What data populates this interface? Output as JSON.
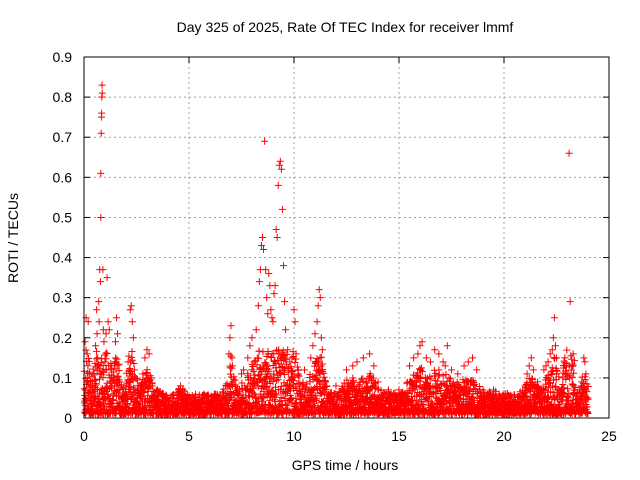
{
  "chart_data": {
    "type": "scatter",
    "title": "Day 325 of 2025, Rate Of TEC Index for receiver lmmf",
    "xlabel": "GPS time / hours",
    "ylabel": "ROTI / TECUs",
    "xlim": [
      0,
      25
    ],
    "ylim": [
      0,
      0.9
    ],
    "xticks": [
      0,
      5,
      10,
      15,
      20,
      25
    ],
    "xtick_labels": [
      "0",
      "5",
      "10",
      "15",
      "20",
      "25"
    ],
    "yticks": [
      0,
      0.1,
      0.2,
      0.3,
      0.4,
      0.5,
      0.6,
      0.7,
      0.8,
      0.9
    ],
    "ytick_labels": [
      "0",
      "0.1",
      "0.2",
      "0.3",
      "0.4",
      "0.5",
      "0.6",
      "0.7",
      "0.8",
      "0.9"
    ],
    "grid": true,
    "marker": "+",
    "color": "#ff0000",
    "series": [
      {
        "name": "ROTI",
        "points": [
          [
            0.05,
            0.19
          ],
          [
            0.1,
            0.25
          ],
          [
            0.15,
            0.16
          ],
          [
            0.2,
            0.24
          ],
          [
            0.25,
            0.11
          ],
          [
            0.3,
            0.09
          ],
          [
            0.4,
            0.08
          ],
          [
            0.5,
            0.07
          ],
          [
            0.55,
            0.18
          ],
          [
            0.6,
            0.27
          ],
          [
            0.62,
            0.21
          ],
          [
            0.65,
            0.15
          ],
          [
            0.7,
            0.29
          ],
          [
            0.72,
            0.24
          ],
          [
            0.75,
            0.37
          ],
          [
            0.78,
            0.34
          ],
          [
            0.8,
            0.5
          ],
          [
            0.8,
            0.61
          ],
          [
            0.82,
            0.71
          ],
          [
            0.83,
            0.75
          ],
          [
            0.84,
            0.76
          ],
          [
            0.85,
            0.8
          ],
          [
            0.86,
            0.83
          ],
          [
            0.87,
            0.81
          ],
          [
            0.9,
            0.37
          ],
          [
            0.92,
            0.22
          ],
          [
            0.95,
            0.19
          ],
          [
            1.0,
            0.14
          ],
          [
            1.05,
            0.21
          ],
          [
            1.1,
            0.35
          ],
          [
            1.15,
            0.24
          ],
          [
            1.2,
            0.22
          ],
          [
            1.3,
            0.12
          ],
          [
            1.4,
            0.1
          ],
          [
            1.5,
            0.19
          ],
          [
            1.55,
            0.25
          ],
          [
            1.6,
            0.21
          ],
          [
            1.7,
            0.09
          ],
          [
            2.0,
            0.08
          ],
          [
            2.1,
            0.14
          ],
          [
            2.2,
            0.27
          ],
          [
            2.25,
            0.28
          ],
          [
            2.3,
            0.24
          ],
          [
            2.35,
            0.2
          ],
          [
            2.4,
            0.12
          ],
          [
            2.8,
            0.11
          ],
          [
            2.9,
            0.15
          ],
          [
            3.0,
            0.17
          ],
          [
            3.1,
            0.16
          ],
          [
            3.2,
            0.1
          ],
          [
            3.5,
            0.07
          ],
          [
            4.5,
            0.07
          ],
          [
            4.6,
            0.08
          ],
          [
            6.9,
            0.16
          ],
          [
            6.95,
            0.2
          ],
          [
            7.0,
            0.23
          ],
          [
            7.05,
            0.15
          ],
          [
            7.1,
            0.09
          ],
          [
            7.5,
            0.11
          ],
          [
            7.6,
            0.12
          ],
          [
            7.8,
            0.15
          ],
          [
            7.9,
            0.18
          ],
          [
            8.0,
            0.2
          ],
          [
            8.1,
            0.14
          ],
          [
            8.2,
            0.22
          ],
          [
            8.3,
            0.28
          ],
          [
            8.35,
            0.34
          ],
          [
            8.4,
            0.37
          ],
          [
            8.45,
            0.43
          ],
          [
            8.5,
            0.45
          ],
          [
            8.55,
            0.42
          ],
          [
            8.6,
            0.69
          ],
          [
            8.65,
            0.37
          ],
          [
            8.7,
            0.3
          ],
          [
            8.75,
            0.26
          ],
          [
            8.8,
            0.36
          ],
          [
            8.85,
            0.33
          ],
          [
            8.9,
            0.27
          ],
          [
            8.95,
            0.25
          ],
          [
            9.0,
            0.24
          ],
          [
            9.05,
            0.31
          ],
          [
            9.1,
            0.33
          ],
          [
            9.15,
            0.47
          ],
          [
            9.2,
            0.45
          ],
          [
            9.25,
            0.58
          ],
          [
            9.3,
            0.63
          ],
          [
            9.35,
            0.64
          ],
          [
            9.4,
            0.62
          ],
          [
            9.45,
            0.52
          ],
          [
            9.5,
            0.38
          ],
          [
            9.55,
            0.29
          ],
          [
            9.6,
            0.22
          ],
          [
            9.7,
            0.17
          ],
          [
            9.8,
            0.14
          ],
          [
            9.9,
            0.15
          ],
          [
            10.0,
            0.27
          ],
          [
            10.05,
            0.24
          ],
          [
            10.1,
            0.16
          ],
          [
            10.2,
            0.12
          ],
          [
            10.5,
            0.12
          ],
          [
            10.8,
            0.15
          ],
          [
            10.9,
            0.18
          ],
          [
            11.0,
            0.21
          ],
          [
            11.1,
            0.24
          ],
          [
            11.15,
            0.28
          ],
          [
            11.2,
            0.32
          ],
          [
            11.25,
            0.3
          ],
          [
            11.3,
            0.2
          ],
          [
            11.35,
            0.17
          ],
          [
            11.5,
            0.09
          ],
          [
            12.0,
            0.08
          ],
          [
            12.5,
            0.12
          ],
          [
            12.8,
            0.13
          ],
          [
            13.0,
            0.14
          ],
          [
            13.3,
            0.15
          ],
          [
            13.6,
            0.16
          ],
          [
            13.8,
            0.13
          ],
          [
            14.0,
            0.09
          ],
          [
            14.5,
            0.07
          ],
          [
            15.0,
            0.07
          ],
          [
            15.5,
            0.13
          ],
          [
            15.7,
            0.15
          ],
          [
            15.9,
            0.16
          ],
          [
            16.0,
            0.18
          ],
          [
            16.1,
            0.19
          ],
          [
            16.3,
            0.15
          ],
          [
            16.5,
            0.14
          ],
          [
            16.7,
            0.17
          ],
          [
            16.9,
            0.16
          ],
          [
            17.1,
            0.14
          ],
          [
            17.2,
            0.13
          ],
          [
            17.3,
            0.18
          ],
          [
            17.5,
            0.12
          ],
          [
            17.8,
            0.11
          ],
          [
            18.1,
            0.13
          ],
          [
            18.3,
            0.14
          ],
          [
            18.5,
            0.15
          ],
          [
            18.7,
            0.12
          ],
          [
            19.0,
            0.07
          ],
          [
            19.5,
            0.07
          ],
          [
            20.0,
            0.06
          ],
          [
            21.0,
            0.08
          ],
          [
            21.1,
            0.11
          ],
          [
            21.2,
            0.13
          ],
          [
            21.3,
            0.15
          ],
          [
            21.4,
            0.12
          ],
          [
            21.6,
            0.09
          ],
          [
            21.9,
            0.12
          ],
          [
            22.0,
            0.13
          ],
          [
            22.1,
            0.14
          ],
          [
            22.2,
            0.16
          ],
          [
            22.3,
            0.17
          ],
          [
            22.35,
            0.2
          ],
          [
            22.4,
            0.25
          ],
          [
            22.45,
            0.18
          ],
          [
            22.5,
            0.15
          ],
          [
            22.8,
            0.1
          ],
          [
            23.0,
            0.11
          ],
          [
            23.1,
            0.66
          ],
          [
            23.15,
            0.29
          ],
          [
            23.3,
            0.08
          ],
          [
            23.7,
            0.09
          ],
          [
            23.8,
            0.15
          ],
          [
            23.85,
            0.14
          ],
          [
            23.9,
            0.11
          ],
          [
            24.0,
            0.05
          ]
        ]
      }
    ]
  }
}
